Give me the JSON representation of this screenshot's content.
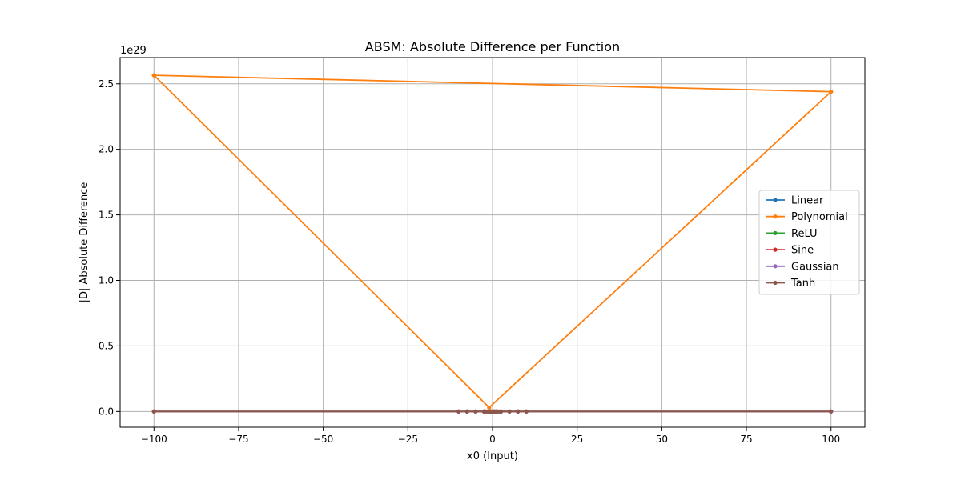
{
  "chart_data": {
    "type": "line",
    "title": "ABSM: Absolute Difference per Function",
    "xlabel": "x0 (Input)",
    "ylabel": "|D| Absolute Difference",
    "y_offset_text": "1e29",
    "xlim": [
      -110,
      110
    ],
    "ylim": [
      -0.12,
      2.7
    ],
    "y_scale_factor": "1e29",
    "xticks": [
      -100,
      -75,
      -50,
      -25,
      0,
      25,
      50,
      75,
      100
    ],
    "xtick_labels": [
      "−100",
      "−75",
      "−50",
      "−25",
      "0",
      "25",
      "50",
      "75",
      "100"
    ],
    "yticks": [
      0.0,
      0.5,
      1.0,
      1.5,
      2.0,
      2.5
    ],
    "ytick_labels": [
      "0.0",
      "0.5",
      "1.0",
      "1.5",
      "2.0",
      "2.5"
    ],
    "grid": true,
    "legend_position": "center-right",
    "series": [
      {
        "name": "Linear",
        "color": "#1f77b4",
        "x": [
          -100,
          -10,
          -7.5,
          -5,
          -2.5,
          -1,
          -0.5,
          0,
          0.5,
          1,
          2.5,
          5,
          7.5,
          10,
          100
        ],
        "y": [
          0,
          0,
          0,
          0,
          0,
          0,
          0,
          0,
          0,
          0,
          0,
          0,
          0,
          0,
          0
        ]
      },
      {
        "name": "Polynomial",
        "color": "#ff7f0e",
        "x": [
          -100,
          100,
          -1,
          -100,
          100
        ],
        "y": [
          2.565,
          2.44,
          0.03,
          2.565,
          2.44
        ]
      },
      {
        "name": "ReLU",
        "color": "#2ca02c",
        "x": [
          -100,
          -10,
          -7.5,
          -5,
          -2.5,
          -1,
          -0.5,
          0,
          0.5,
          1,
          2.5,
          5,
          7.5,
          10,
          100
        ],
        "y": [
          0,
          0,
          0,
          0,
          0,
          0,
          0,
          0,
          0,
          0,
          0,
          0,
          0,
          0,
          0
        ]
      },
      {
        "name": "Sine",
        "color": "#d62728",
        "x": [
          -100,
          -10,
          -7.5,
          -5,
          -2.5,
          -1,
          -0.5,
          0,
          0.5,
          1,
          2.5,
          5,
          7.5,
          10,
          100
        ],
        "y": [
          0,
          0,
          0,
          0,
          0,
          0,
          0,
          0,
          0,
          0,
          0,
          0,
          0,
          0,
          0
        ]
      },
      {
        "name": "Gaussian",
        "color": "#9467bd",
        "x": [
          -100,
          -10,
          -7.5,
          -5,
          -2.5,
          -1,
          -0.5,
          0,
          0.5,
          1,
          2.5,
          5,
          7.5,
          10,
          100
        ],
        "y": [
          0,
          0,
          0,
          0,
          0,
          0,
          0,
          0,
          0,
          0,
          0,
          0,
          0,
          0,
          0
        ]
      },
      {
        "name": "Tanh",
        "color": "#8c564b",
        "x": [
          -100,
          -10,
          -7.5,
          -5,
          -2.5,
          -2,
          -1.5,
          -1,
          -0.5,
          0,
          0.5,
          1,
          1.5,
          2,
          2.5,
          5,
          7.5,
          10,
          100
        ],
        "y": [
          0,
          0,
          0,
          0,
          0,
          0,
          0,
          0,
          0,
          0,
          0,
          0,
          0,
          0,
          0,
          0,
          0,
          0,
          0
        ]
      }
    ]
  }
}
